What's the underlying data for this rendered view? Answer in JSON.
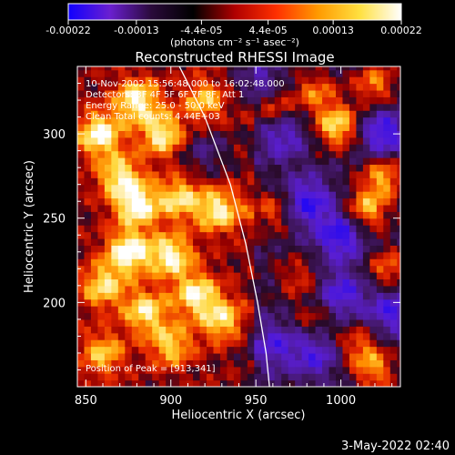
{
  "colorbar": {
    "tick_labels": [
      "-0.00022",
      "-0.00013",
      "-4.4e-05",
      "4.4e-05",
      "0.00013",
      "0.00022"
    ],
    "tick_values": [
      -0.00022,
      -0.00013,
      -4.4e-05,
      4.4e-05,
      0.00013,
      0.00022
    ],
    "range": [
      -0.00022,
      0.00022
    ],
    "units": "(photons cm⁻² s⁻¹ asec⁻²)",
    "colors": [
      "#1000ff",
      "#6a1fd0",
      "#2a0a3a",
      "#000000",
      "#b00000",
      "#ff3000",
      "#ff9a00",
      "#ffe040",
      "#ffffff"
    ]
  },
  "chart_data": {
    "type": "heatmap",
    "title": "Reconstructed RHESSI Image",
    "xlabel": "Heliocentric X (arcsec)",
    "ylabel": "Heliocentric Y (arcsec)",
    "xlim": [
      845,
      1035
    ],
    "ylim": [
      150,
      340
    ],
    "x_ticks": [
      850,
      900,
      950,
      1000
    ],
    "y_ticks": [
      200,
      250,
      300
    ],
    "colormap": "blue-purple-black-red-yellow-white",
    "info_lines": [
      "10-Nov-2002 15:56:48.000 to 16:02:48.000",
      "Detectors: 3F 4F 5F 6F 7F 8F, Att 1",
      "Energy Range: 25.0 - 50.0 keV",
      "Clean     Total counts: 4.44E+03"
    ],
    "peak_label": "Position of Peak = [913,341]",
    "peak_position": [
      913,
      341
    ],
    "limb_curve": [
      [
        905,
        340
      ],
      [
        920,
        310
      ],
      [
        935,
        270
      ],
      [
        944,
        235
      ],
      [
        951,
        200
      ],
      [
        956,
        170
      ],
      [
        958,
        150
      ]
    ],
    "hot_spots": [
      {
        "x": 858,
        "y": 300,
        "level": 0.9
      },
      {
        "x": 880,
        "y": 320,
        "level": 0.85
      },
      {
        "x": 895,
        "y": 300,
        "level": 0.8
      },
      {
        "x": 870,
        "y": 275,
        "level": 0.75
      },
      {
        "x": 880,
        "y": 258,
        "level": 0.9
      },
      {
        "x": 905,
        "y": 262,
        "level": 0.7
      },
      {
        "x": 928,
        "y": 255,
        "level": 0.8
      },
      {
        "x": 875,
        "y": 230,
        "level": 0.95
      },
      {
        "x": 900,
        "y": 228,
        "level": 0.85
      },
      {
        "x": 860,
        "y": 210,
        "level": 0.7
      },
      {
        "x": 915,
        "y": 205,
        "level": 0.8
      },
      {
        "x": 885,
        "y": 195,
        "level": 0.75
      },
      {
        "x": 930,
        "y": 190,
        "level": 0.7
      },
      {
        "x": 900,
        "y": 175,
        "level": 0.65
      },
      {
        "x": 860,
        "y": 170,
        "level": 0.6
      },
      {
        "x": 920,
        "y": 320,
        "level": 0.6
      },
      {
        "x": 960,
        "y": 315,
        "level": 0.55
      },
      {
        "x": 985,
        "y": 325,
        "level": 0.55
      },
      {
        "x": 998,
        "y": 305,
        "level": 0.9
      },
      {
        "x": 1020,
        "y": 330,
        "level": 0.6
      },
      {
        "x": 1025,
        "y": 275,
        "level": 0.7
      },
      {
        "x": 1015,
        "y": 255,
        "level": 0.75
      },
      {
        "x": 1028,
        "y": 220,
        "level": 0.55
      },
      {
        "x": 1010,
        "y": 175,
        "level": 0.5
      },
      {
        "x": 1020,
        "y": 160,
        "level": 0.6
      },
      {
        "x": 960,
        "y": 255,
        "level": 0.5
      },
      {
        "x": 975,
        "y": 215,
        "level": 0.4
      },
      {
        "x": 985,
        "y": 190,
        "level": 0.35
      }
    ],
    "cold_spots": [
      {
        "x": 980,
        "y": 260,
        "level": 0.7
      },
      {
        "x": 1000,
        "y": 240,
        "level": 0.75
      },
      {
        "x": 1025,
        "y": 300,
        "level": 0.7
      },
      {
        "x": 965,
        "y": 300,
        "level": 0.55
      },
      {
        "x": 1000,
        "y": 205,
        "level": 0.6
      },
      {
        "x": 960,
        "y": 175,
        "level": 0.5
      },
      {
        "x": 985,
        "y": 170,
        "level": 0.55
      },
      {
        "x": 1030,
        "y": 195,
        "level": 0.6
      },
      {
        "x": 920,
        "y": 290,
        "level": 0.35
      },
      {
        "x": 950,
        "y": 330,
        "level": 0.45
      }
    ]
  },
  "footer": {
    "date": "3-May-2022 02:40"
  }
}
